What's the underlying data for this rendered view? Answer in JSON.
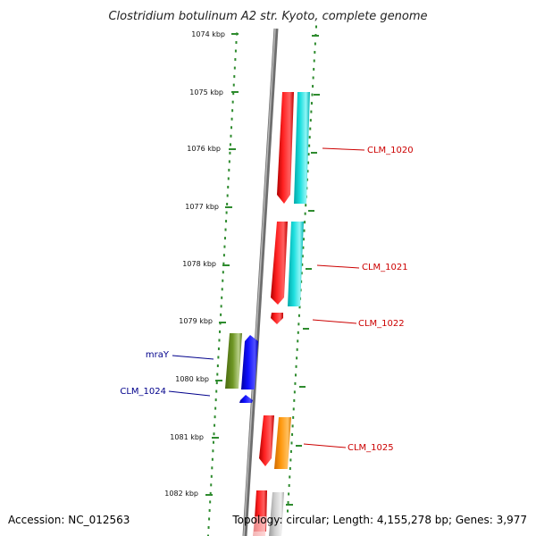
{
  "title": "Clostridium botulinum A2 str. Kyoto, complete genome",
  "footer": {
    "accession": "Accession: NC_012563",
    "summary": "Topology: circular; Length: 4,155,278 bp; Genes: 3,977"
  },
  "colors": {
    "ruler_dots": "#2e8b2e",
    "backbone": "#8a8a8a",
    "label_red": "#cc0000",
    "label_blue": "#00008b"
  },
  "ruler_ticks": [
    {
      "label": "1074 kbp"
    },
    {
      "label": "1075 kbp"
    },
    {
      "label": "1076 kbp"
    },
    {
      "label": "1077 kbp"
    },
    {
      "label": "1078 kbp"
    },
    {
      "label": "1079 kbp"
    },
    {
      "label": "1080 kbp"
    },
    {
      "label": "1081 kbp"
    },
    {
      "label": "1082 kbp"
    }
  ],
  "gene_labels": [
    {
      "text": "CLM_1020",
      "color": "red"
    },
    {
      "text": "CLM_1021",
      "color": "red"
    },
    {
      "text": "CLM_1022",
      "color": "red"
    },
    {
      "text": "mraY",
      "color": "blue"
    },
    {
      "text": "CLM_1024",
      "color": "blue"
    },
    {
      "text": "CLM_1025",
      "color": "red"
    }
  ]
}
